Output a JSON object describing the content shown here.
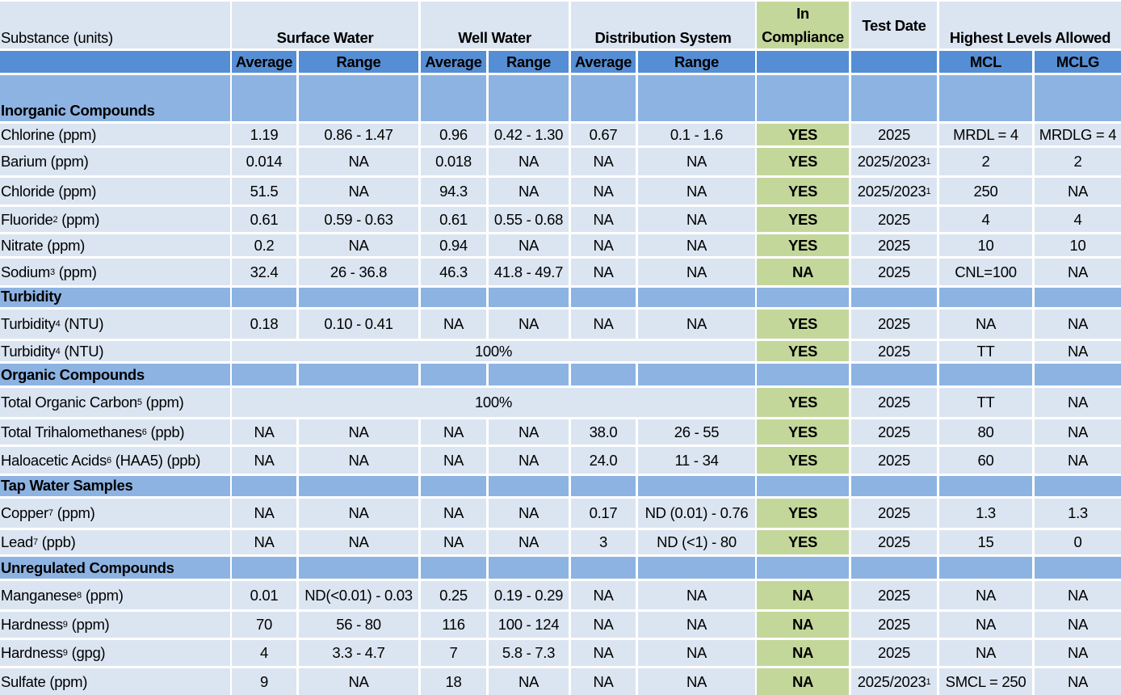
{
  "header": {
    "substance": "Substance (units)",
    "groups": [
      "Surface Water",
      "Well Water",
      "Distribution System"
    ],
    "compliance": "In Compliance",
    "date": "Test Date",
    "limits": "Highest Levels Allowed",
    "sub": [
      "Average",
      "Range",
      "Average",
      "Range",
      "Average",
      "Range",
      "MCL",
      "MCLG"
    ]
  },
  "sections": [
    {
      "title": "Inorganic Compounds",
      "rows": [
        {
          "name": "Chlorine (ppm)",
          "values": [
            "1.19",
            "0.86 - 1.47",
            "0.96",
            "0.42 - 1.30",
            "0.67",
            "0.1 - 1.6"
          ],
          "compliance": "YES",
          "date": "2025",
          "mcl": "MRDL = 4",
          "mclg": "MRDLG = 4"
        },
        {
          "name": "Barium (ppm)",
          "values": [
            "0.014",
            "NA",
            "0.018",
            "NA",
            "NA",
            "NA"
          ],
          "compliance": "YES",
          "date": "2025/2023",
          "date_note": "1",
          "mcl": "2",
          "mclg": "2"
        },
        {
          "name": "Chloride (ppm)",
          "values": [
            "51.5",
            "NA",
            "94.3",
            "NA",
            "NA",
            "NA"
          ],
          "compliance": "YES",
          "date": "2025/2023",
          "date_note": "1",
          "mcl": "250",
          "mclg": "NA"
        },
        {
          "name": "Fluoride",
          "note": "2",
          "unit": "(ppm)",
          "values": [
            "0.61",
            "0.59 - 0.63",
            "0.61",
            "0.55 - 0.68",
            "NA",
            "NA"
          ],
          "compliance": "YES",
          "date": "2025",
          "mcl": "4",
          "mclg": "4"
        },
        {
          "name": "Nitrate (ppm)",
          "values": [
            "0.2",
            "NA",
            "0.94",
            "NA",
            "NA",
            "NA"
          ],
          "compliance": "YES",
          "date": "2025",
          "mcl": "10",
          "mclg": "10"
        },
        {
          "name": "Sodium",
          "note": "3",
          "unit": "(ppm)",
          "values": [
            "32.4",
            "26 - 36.8",
            "46.3",
            "41.8 - 49.7",
            "NA",
            "NA"
          ],
          "compliance": "NA",
          "date": "2025",
          "mcl": "CNL=100",
          "mclg": "NA"
        }
      ]
    },
    {
      "title": "Turbidity",
      "rows": [
        {
          "name": "Turbidity",
          "note": "4",
          "unit": "(NTU)",
          "values": [
            "0.18",
            "0.10 - 0.41",
            "NA",
            "NA",
            "NA",
            "NA"
          ],
          "compliance": "YES",
          "date": "2025",
          "mcl": "NA",
          "mclg": "NA"
        },
        {
          "name": "Turbidity",
          "note": "4",
          "unit": "(NTU)",
          "span": "100%",
          "compliance": "YES",
          "date": "2025",
          "mcl": "TT",
          "mclg": "NA"
        }
      ]
    },
    {
      "title": "Organic Compounds",
      "rows": [
        {
          "name": "Total Organic Carbon",
          "note": "5",
          "unit": "(ppm)",
          "span": "100%",
          "compliance": "YES",
          "date": "2025",
          "mcl": "TT",
          "mclg": "NA"
        },
        {
          "name": "Total Trihalomethanes",
          "note": "6",
          "unit": "(ppb)",
          "values": [
            "NA",
            "NA",
            "NA",
            "NA",
            "38.0",
            "26 - 55"
          ],
          "compliance": "YES",
          "date": "2025",
          "mcl": "80",
          "mclg": "NA"
        },
        {
          "name": "Haloacetic Acids",
          "note": "6",
          "unit": "(HAA5) (ppb)",
          "values": [
            "NA",
            "NA",
            "NA",
            "NA",
            "24.0",
            "11 - 34"
          ],
          "compliance": "YES",
          "date": "2025",
          "mcl": "60",
          "mclg": "NA"
        }
      ]
    },
    {
      "title": "Tap Water Samples",
      "rows": [
        {
          "name": "Copper",
          "note": "7",
          "unit": "(ppm)",
          "values": [
            "NA",
            "NA",
            "NA",
            "NA",
            "0.17",
            "ND (0.01) - 0.76"
          ],
          "compliance": "YES",
          "date": "2025",
          "mcl": "1.3",
          "mclg": "1.3"
        },
        {
          "name": "Lead",
          "note": "7",
          "unit": "(ppb)",
          "values": [
            "NA",
            "NA",
            "NA",
            "NA",
            "3",
            "ND (<1) - 80"
          ],
          "compliance": "YES",
          "date": "2025",
          "mcl": "15",
          "mclg": "0"
        }
      ]
    },
    {
      "title": "Unregulated Compounds",
      "rows": [
        {
          "name": "Manganese",
          "note": "8",
          "unit": "(ppm)",
          "values": [
            "0.01",
            "ND(<0.01) - 0.03",
            "0.25",
            "0.19 - 0.29",
            "NA",
            "NA"
          ],
          "compliance": "NA",
          "date": "2025",
          "mcl": "NA",
          "mclg": "NA"
        },
        {
          "name": "Hardness",
          "note": "9",
          "unit": "(ppm)",
          "values": [
            "70",
            "56 - 80",
            "116",
            "100 - 124",
            "NA",
            "NA"
          ],
          "compliance": "NA",
          "date": "2025",
          "mcl": "NA",
          "mclg": "NA"
        },
        {
          "name": "Hardness",
          "note": "9",
          "unit": "(gpg)",
          "values": [
            "4",
            "3.3 - 4.7",
            "7",
            "5.8 - 7.3",
            "NA",
            "NA"
          ],
          "compliance": "NA",
          "date": "2025",
          "mcl": "NA",
          "mclg": "NA"
        },
        {
          "name": "Sulfate (ppm)",
          "values": [
            "9",
            "NA",
            "18",
            "NA",
            "NA",
            "NA"
          ],
          "compliance": "NA",
          "date": "2025/2023",
          "date_note": "1",
          "mcl": "SMCL = 250",
          "mclg": "NA"
        }
      ]
    }
  ]
}
